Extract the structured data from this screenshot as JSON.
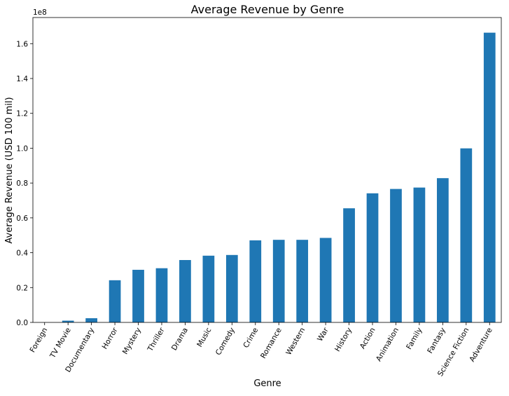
{
  "chart_data": {
    "type": "bar",
    "title": "Average Revenue by Genre",
    "xlabel": "Genre",
    "ylabel": "Average Revenue (USD 100 mil)",
    "y_offset_label": "1e8",
    "categories": [
      "Foreign",
      "TV Movie",
      "Documentary",
      "Horror",
      "Mystery",
      "Thriller",
      "Drama",
      "Music",
      "Comedy",
      "Crime",
      "Romance",
      "Western",
      "War",
      "History",
      "Action",
      "Animation",
      "Family",
      "Fantasy",
      "Science Fiction",
      "Adventure"
    ],
    "values": [
      0.0,
      0.01,
      0.024,
      0.242,
      0.302,
      0.311,
      0.358,
      0.383,
      0.387,
      0.471,
      0.474,
      0.474,
      0.485,
      0.655,
      0.741,
      0.766,
      0.774,
      0.828,
      0.999,
      1.663
    ],
    "value_scale": 100000000,
    "ylim": [
      0,
      1.75
    ],
    "yticks": [
      0.0,
      0.2,
      0.4,
      0.6,
      0.8,
      1.0,
      1.2,
      1.4,
      1.6
    ],
    "ytick_labels": [
      "0.0",
      "0.2",
      "0.4",
      "0.6",
      "0.8",
      "1.0",
      "1.2",
      "1.4",
      "1.6"
    ],
    "grid": false,
    "legend": "none",
    "bar_color": "#1f77b4"
  }
}
